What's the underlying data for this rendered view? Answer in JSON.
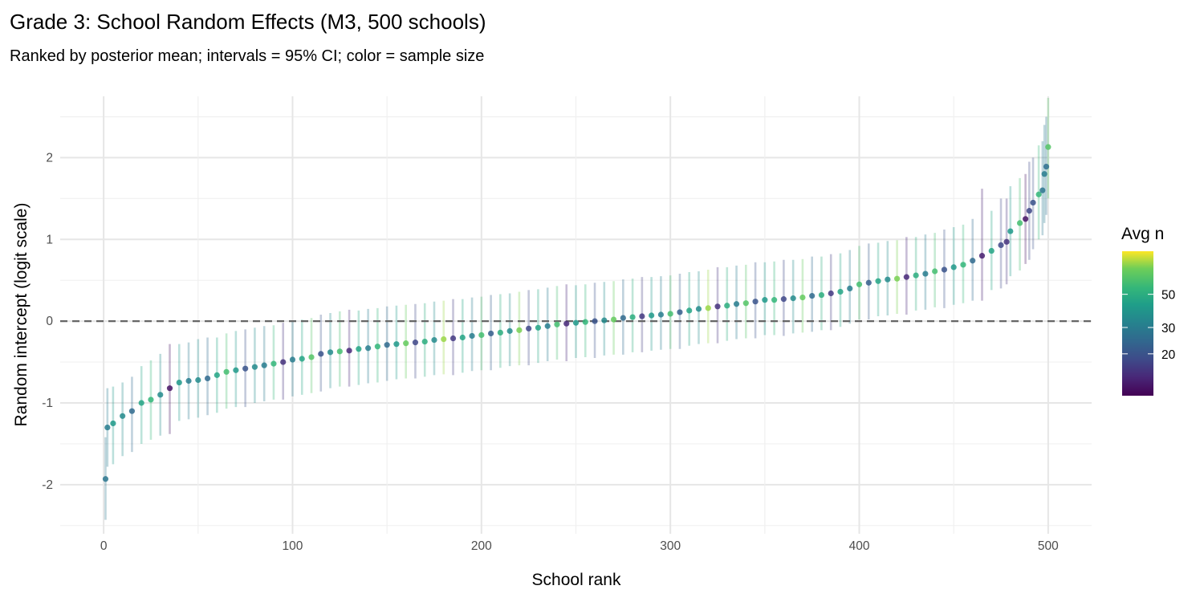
{
  "chart_data": {
    "type": "scatter",
    "title": "Grade 3: School Random Effects (M3, 500 schools)",
    "subtitle": "Ranked by posterior mean; intervals = 95% CI; color = sample size",
    "xlabel": "School rank",
    "ylabel": "Random intercept (logit scale)",
    "xlim": [
      -23,
      523
    ],
    "ylim": [
      -2.6,
      2.75
    ],
    "xticks": [
      0,
      100,
      200,
      300,
      400,
      500
    ],
    "yticks": [
      -2,
      -1,
      0,
      1,
      2
    ],
    "reference_line": {
      "y": 0,
      "style": "dashed"
    },
    "grid": true,
    "legend": {
      "title": "Avg n",
      "position": "right",
      "scale": "log",
      "range": [
        10.5,
        97
      ],
      "ticks": [
        20,
        30,
        50
      ],
      "palette": "viridis"
    },
    "point_fields": [
      "rank",
      "estimate",
      "lower",
      "upper",
      "n"
    ],
    "points": [
      [
        1,
        -1.93,
        -2.43,
        -1.42,
        28
      ],
      [
        2,
        -1.3,
        -1.78,
        -0.82,
        30
      ],
      [
        5,
        -1.25,
        -1.75,
        -0.8,
        40
      ],
      [
        10,
        -1.16,
        -1.65,
        -0.75,
        35
      ],
      [
        15,
        -1.1,
        -1.6,
        -0.68,
        25
      ],
      [
        20,
        -1.0,
        -1.5,
        -0.55,
        45
      ],
      [
        25,
        -0.96,
        -1.45,
        -0.48,
        55
      ],
      [
        30,
        -0.9,
        -1.4,
        -0.4,
        35
      ],
      [
        35,
        -0.82,
        -1.38,
        -0.28,
        12
      ],
      [
        40,
        -0.75,
        -1.22,
        -0.28,
        40
      ],
      [
        45,
        -0.73,
        -1.2,
        -0.26,
        30
      ],
      [
        50,
        -0.72,
        -1.18,
        -0.22,
        35
      ],
      [
        55,
        -0.7,
        -1.15,
        -0.2,
        25
      ],
      [
        60,
        -0.66,
        -1.12,
        -0.2,
        45
      ],
      [
        65,
        -0.62,
        -1.07,
        -0.15,
        60
      ],
      [
        70,
        -0.6,
        -1.05,
        -0.12,
        40
      ],
      [
        75,
        -0.58,
        -1.05,
        -0.1,
        20
      ],
      [
        80,
        -0.56,
        -1.0,
        -0.08,
        35
      ],
      [
        85,
        -0.54,
        -0.98,
        -0.06,
        30
      ],
      [
        90,
        -0.52,
        -0.96,
        -0.05,
        55
      ],
      [
        95,
        -0.5,
        -0.96,
        -0.02,
        15
      ],
      [
        100,
        -0.47,
        -0.92,
        0.0,
        30
      ],
      [
        105,
        -0.46,
        -0.9,
        0.02,
        45
      ],
      [
        110,
        -0.44,
        -0.88,
        0.04,
        65
      ],
      [
        115,
        -0.4,
        -0.86,
        0.08,
        20
      ],
      [
        120,
        -0.38,
        -0.82,
        0.1,
        35
      ],
      [
        125,
        -0.37,
        -0.8,
        0.12,
        60
      ],
      [
        130,
        -0.36,
        -0.8,
        0.14,
        14
      ],
      [
        135,
        -0.34,
        -0.78,
        0.13,
        45
      ],
      [
        140,
        -0.33,
        -0.76,
        0.15,
        30
      ],
      [
        145,
        -0.31,
        -0.75,
        0.16,
        55
      ],
      [
        150,
        -0.29,
        -0.73,
        0.18,
        25
      ],
      [
        155,
        -0.28,
        -0.71,
        0.19,
        40
      ],
      [
        160,
        -0.27,
        -0.7,
        0.2,
        70
      ],
      [
        165,
        -0.26,
        -0.7,
        0.21,
        18
      ],
      [
        170,
        -0.25,
        -0.68,
        0.22,
        50
      ],
      [
        175,
        -0.23,
        -0.66,
        0.24,
        35
      ],
      [
        180,
        -0.22,
        -0.65,
        0.25,
        80
      ],
      [
        185,
        -0.21,
        -0.66,
        0.27,
        16
      ],
      [
        190,
        -0.2,
        -0.63,
        0.27,
        45
      ],
      [
        195,
        -0.18,
        -0.61,
        0.29,
        30
      ],
      [
        200,
        -0.17,
        -0.6,
        0.3,
        60
      ],
      [
        205,
        -0.15,
        -0.6,
        0.32,
        22
      ],
      [
        210,
        -0.14,
        -0.57,
        0.33,
        50
      ],
      [
        215,
        -0.12,
        -0.55,
        0.34,
        35
      ],
      [
        220,
        -0.11,
        -0.54,
        0.36,
        75
      ],
      [
        225,
        -0.09,
        -0.54,
        0.38,
        18
      ],
      [
        230,
        -0.08,
        -0.51,
        0.39,
        45
      ],
      [
        235,
        -0.06,
        -0.49,
        0.41,
        30
      ],
      [
        240,
        -0.04,
        -0.47,
        0.43,
        60
      ],
      [
        245,
        -0.03,
        -0.49,
        0.45,
        14
      ],
      [
        250,
        -0.02,
        -0.45,
        0.44,
        40
      ],
      [
        255,
        -0.01,
        -0.44,
        0.45,
        55
      ],
      [
        260,
        0.0,
        -0.45,
        0.47,
        20
      ],
      [
        265,
        0.01,
        -0.42,
        0.48,
        35
      ],
      [
        270,
        0.02,
        -0.41,
        0.49,
        70
      ],
      [
        275,
        0.04,
        -0.41,
        0.51,
        25
      ],
      [
        280,
        0.05,
        -0.38,
        0.52,
        50
      ],
      [
        285,
        0.06,
        -0.38,
        0.54,
        16
      ],
      [
        290,
        0.07,
        -0.36,
        0.54,
        40
      ],
      [
        295,
        0.08,
        -0.35,
        0.55,
        30
      ],
      [
        300,
        0.09,
        -0.34,
        0.56,
        60
      ],
      [
        305,
        0.11,
        -0.34,
        0.58,
        22
      ],
      [
        310,
        0.13,
        -0.3,
        0.6,
        45
      ],
      [
        315,
        0.15,
        -0.28,
        0.61,
        35
      ],
      [
        320,
        0.16,
        -0.27,
        0.63,
        80
      ],
      [
        325,
        0.18,
        -0.27,
        0.66,
        15
      ],
      [
        330,
        0.19,
        -0.24,
        0.66,
        50
      ],
      [
        335,
        0.21,
        -0.22,
        0.68,
        30
      ],
      [
        340,
        0.22,
        -0.21,
        0.69,
        65
      ],
      [
        345,
        0.24,
        -0.21,
        0.72,
        20
      ],
      [
        350,
        0.26,
        -0.17,
        0.72,
        40
      ],
      [
        355,
        0.26,
        -0.17,
        0.73,
        55
      ],
      [
        360,
        0.27,
        -0.18,
        0.75,
        18
      ],
      [
        365,
        0.28,
        -0.15,
        0.75,
        35
      ],
      [
        370,
        0.29,
        -0.14,
        0.76,
        70
      ],
      [
        375,
        0.31,
        -0.13,
        0.79,
        25
      ],
      [
        380,
        0.32,
        -0.11,
        0.79,
        50
      ],
      [
        385,
        0.34,
        -0.11,
        0.82,
        16
      ],
      [
        390,
        0.36,
        -0.07,
        0.83,
        45
      ],
      [
        395,
        0.4,
        -0.03,
        0.87,
        30
      ],
      [
        400,
        0.45,
        0.02,
        0.92,
        60
      ],
      [
        405,
        0.47,
        0.02,
        0.95,
        22
      ],
      [
        410,
        0.49,
        0.06,
        0.96,
        45
      ],
      [
        415,
        0.51,
        0.07,
        0.98,
        35
      ],
      [
        420,
        0.52,
        0.09,
        0.99,
        75
      ],
      [
        425,
        0.54,
        0.08,
        1.03,
        14
      ],
      [
        430,
        0.56,
        0.13,
        1.03,
        50
      ],
      [
        435,
        0.58,
        0.14,
        1.06,
        30
      ],
      [
        440,
        0.61,
        0.17,
        1.08,
        60
      ],
      [
        445,
        0.63,
        0.16,
        1.12,
        20
      ],
      [
        450,
        0.66,
        0.2,
        1.15,
        40
      ],
      [
        455,
        0.69,
        0.22,
        1.18,
        55
      ],
      [
        460,
        0.74,
        0.25,
        1.25,
        25
      ],
      [
        465,
        0.8,
        0.25,
        1.62,
        13
      ],
      [
        470,
        0.86,
        0.38,
        1.35,
        45
      ],
      [
        475,
        0.93,
        0.4,
        1.5,
        18
      ],
      [
        478,
        0.97,
        0.45,
        1.5,
        15
      ],
      [
        480,
        1.1,
        0.55,
        1.65,
        40
      ],
      [
        485,
        1.2,
        0.62,
        1.75,
        60
      ],
      [
        488,
        1.25,
        0.7,
        1.8,
        12
      ],
      [
        490,
        1.35,
        0.75,
        1.95,
        18
      ],
      [
        492,
        1.45,
        0.88,
        2.0,
        20
      ],
      [
        495,
        1.55,
        1.0,
        2.15,
        55
      ],
      [
        497,
        1.6,
        1.05,
        2.2,
        28
      ],
      [
        498,
        1.8,
        1.2,
        2.4,
        30
      ],
      [
        499,
        1.89,
        1.3,
        2.5,
        26
      ],
      [
        500,
        2.13,
        1.5,
        2.73,
        65
      ]
    ]
  }
}
